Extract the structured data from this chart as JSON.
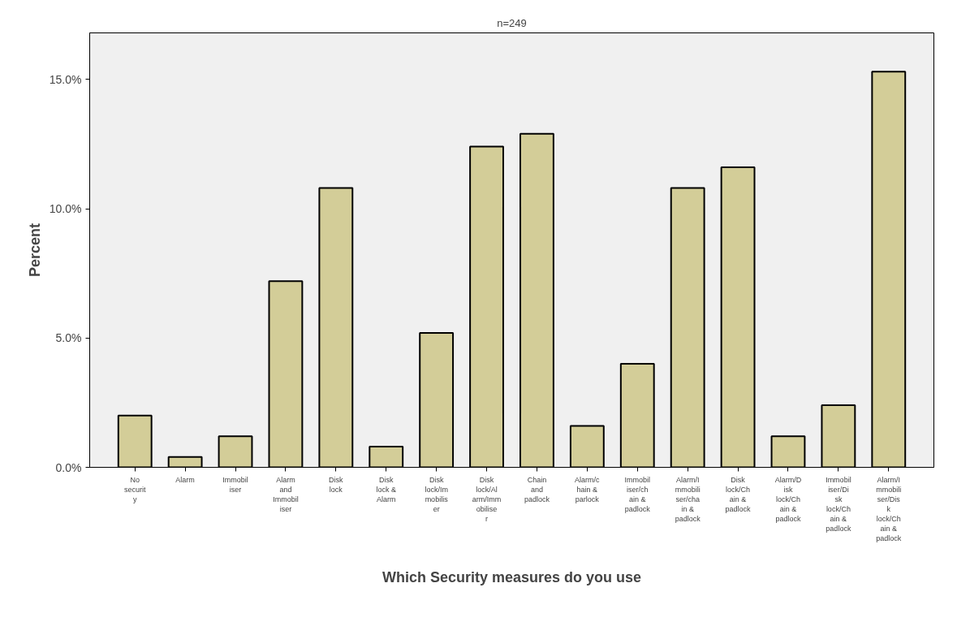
{
  "chart_data": {
    "type": "bar",
    "title": "n=249",
    "xlabel": "Which Security measures do you use",
    "ylabel": "Percent",
    "categories": [
      "No security",
      "Alarm",
      "Immobiliser",
      "Alarm and Immobiliser",
      "Disk lock",
      "Disk lock & Alarm",
      "Disk lock/Immobiliser",
      "Disk lock/Alarm/Immobiliser",
      "Chain and padlock",
      "Alarm/chain & parlock",
      "Immobiliser/chain & padlock",
      "Alarm/Immobiliser/chain & padlock",
      "Disk lock/Chain & padlock",
      "Alarm/Disk lock/Chain & padlock",
      "Immobiliser/Disk lock/Chain & padlock",
      "Alarm/Immobiliser/Disk lock/Chain & padlock"
    ],
    "values": [
      2.0,
      0.4,
      1.2,
      7.2,
      10.8,
      0.8,
      5.2,
      12.4,
      12.9,
      1.6,
      4.0,
      10.8,
      11.6,
      1.2,
      2.4,
      15.3
    ],
    "color": "#d3cd98",
    "ylim": [
      0,
      16.8
    ],
    "yticks": [
      {
        "value": 0,
        "label": "0.0%"
      },
      {
        "value": 5,
        "label": "5.0%"
      },
      {
        "value": 10,
        "label": "10.0%"
      },
      {
        "value": 15,
        "label": "15.0%"
      }
    ],
    "grid": false
  }
}
